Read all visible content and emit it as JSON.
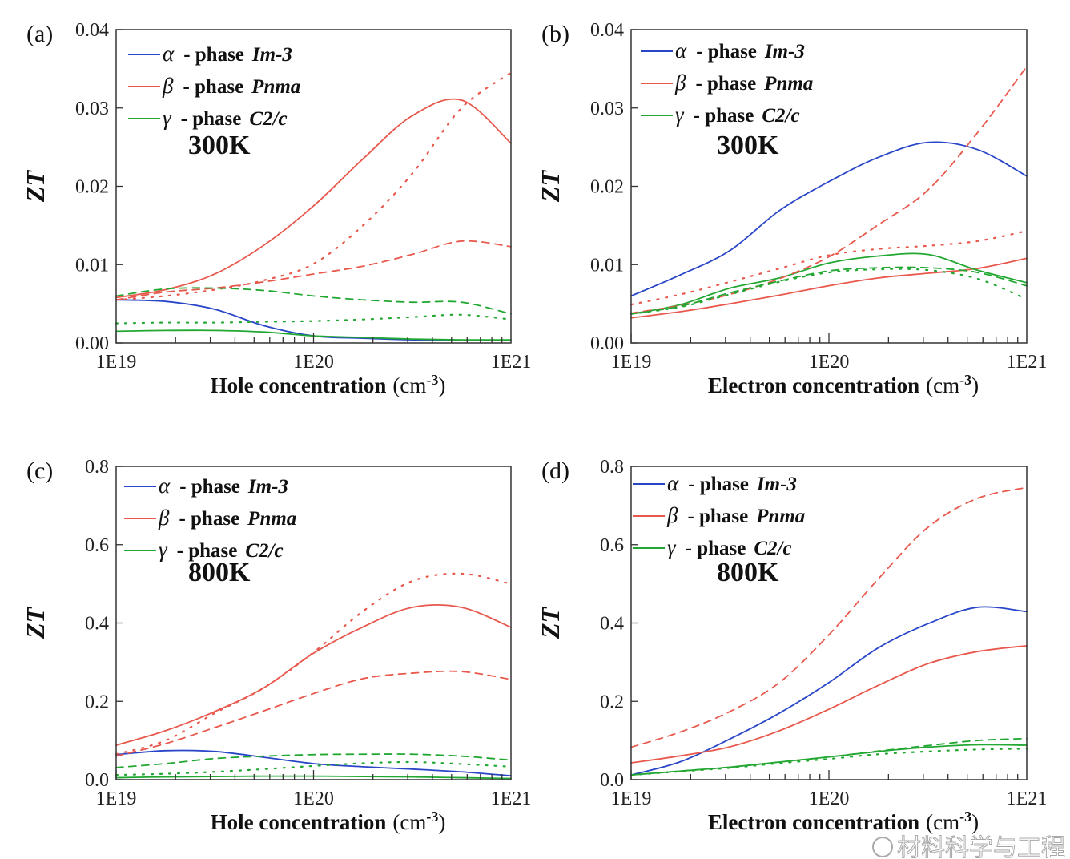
{
  "watermark": "材料科学与工程",
  "colors": {
    "alpha": "#2a46c8",
    "beta": "#e8584c",
    "gamma": "#22a832"
  },
  "chart_data": [
    {
      "type": "line",
      "panel_label": "(a)",
      "annotation": "300K",
      "xlabel": "Hole concentration",
      "xlabel_unit": "(cm",
      "xlabel_exp": "-3",
      "xlabel_close": ")",
      "ylabel": "ZT",
      "xscale": "log",
      "xlim": [
        1e+19,
        1e+21
      ],
      "ylim": [
        0,
        0.04
      ],
      "xticks": [
        "1E19",
        "1E20",
        "1E21"
      ],
      "yticks": [
        "0.00",
        "0.01",
        "0.02",
        "0.03",
        "0.04"
      ],
      "legend_position": "top-left",
      "x": [
        1e+19,
        1.78e+19,
        3.16e+19,
        5.62e+19,
        1e+20,
        1.78e+20,
        3.16e+20,
        5.62e+20,
        1e+21
      ],
      "series": [
        {
          "name": "α - phase Im-3",
          "color": "#2a46c8",
          "style": "solid",
          "values": [
            0.0055,
            0.0053,
            0.0043,
            0.0022,
            0.0009,
            0.0006,
            0.0004,
            0.0003,
            0.0003
          ]
        },
        {
          "name": "β - phase Pnma",
          "color": "#e8584c",
          "style": "solid",
          "values": [
            0.0058,
            0.0068,
            0.0088,
            0.0125,
            0.0175,
            0.0235,
            0.029,
            0.031,
            0.0255
          ]
        },
        {
          "name": "γ - phase C2/c",
          "color": "#22a832",
          "style": "solid",
          "values": [
            0.0015,
            0.0016,
            0.0016,
            0.0014,
            0.0009,
            0.0007,
            0.0005,
            0.0004,
            0.0004
          ]
        },
        {
          "color": "#e8584c",
          "style": "dashed",
          "values": [
            0.0055,
            0.0065,
            0.007,
            0.0078,
            0.0088,
            0.0098,
            0.0113,
            0.013,
            0.0123
          ]
        },
        {
          "color": "#e8584c",
          "style": "dotted",
          "values": [
            0.0055,
            0.006,
            0.0068,
            0.008,
            0.0101,
            0.015,
            0.0216,
            0.03,
            0.0345
          ]
        },
        {
          "color": "#22a832",
          "style": "dashed",
          "values": [
            0.006,
            0.0069,
            0.007,
            0.0067,
            0.006,
            0.0055,
            0.0052,
            0.0052,
            0.0037
          ]
        },
        {
          "color": "#22a832",
          "style": "dotted",
          "values": [
            0.0025,
            0.0026,
            0.0026,
            0.0027,
            0.0028,
            0.003,
            0.0033,
            0.0036,
            0.003
          ]
        }
      ]
    },
    {
      "type": "line",
      "panel_label": "(b)",
      "annotation": "300K",
      "xlabel": "Electron concentration",
      "xlabel_unit": "(cm",
      "xlabel_exp": "-3",
      "xlabel_close": ")",
      "ylabel": "ZT",
      "xscale": "log",
      "xlim": [
        1e+19,
        1e+21
      ],
      "ylim": [
        0,
        0.04
      ],
      "xticks": [
        "1E19",
        "1E20",
        "1E21"
      ],
      "yticks": [
        "0.00",
        "0.01",
        "0.02",
        "0.03",
        "0.04"
      ],
      "legend_position": "top-left",
      "x": [
        1e+19,
        1.78e+19,
        3.16e+19,
        5.62e+19,
        1e+20,
        1.78e+20,
        3.16e+20,
        5.62e+20,
        1e+21
      ],
      "series": [
        {
          "name": "α - phase Im-3",
          "color": "#2a46c8",
          "style": "solid",
          "values": [
            0.006,
            0.0087,
            0.0118,
            0.0169,
            0.0206,
            0.0237,
            0.0256,
            0.0247,
            0.0213
          ]
        },
        {
          "name": "β - phase Pnma",
          "color": "#e8584c",
          "style": "solid",
          "values": [
            0.0032,
            0.004,
            0.005,
            0.0061,
            0.0073,
            0.0083,
            0.0089,
            0.0095,
            0.0108
          ]
        },
        {
          "name": "γ - phase C2/c",
          "color": "#22a832",
          "style": "solid",
          "values": [
            0.0037,
            0.0049,
            0.007,
            0.0083,
            0.0102,
            0.0111,
            0.0113,
            0.0093,
            0.0077
          ]
        },
        {
          "color": "#e8584c",
          "style": "dashed",
          "values": [
            0.0038,
            0.0048,
            0.0062,
            0.0082,
            0.011,
            0.0151,
            0.0195,
            0.0268,
            0.0353
          ]
        },
        {
          "color": "#e8584c",
          "style": "dotted",
          "values": [
            0.0049,
            0.0062,
            0.0078,
            0.0095,
            0.0112,
            0.012,
            0.0124,
            0.013,
            0.0143
          ]
        },
        {
          "color": "#22a832",
          "style": "dashed",
          "values": [
            0.0037,
            0.0047,
            0.0064,
            0.0079,
            0.0092,
            0.0096,
            0.0096,
            0.009,
            0.0073
          ]
        },
        {
          "color": "#22a832",
          "style": "dotted",
          "values": [
            0.0037,
            0.0046,
            0.0062,
            0.0078,
            0.009,
            0.0094,
            0.0093,
            0.0082,
            0.0056
          ]
        }
      ]
    },
    {
      "type": "line",
      "panel_label": "(c)",
      "annotation": "800K",
      "xlabel": "Hole concentration",
      "xlabel_unit": "(cm",
      "xlabel_exp": "-3",
      "xlabel_close": ")",
      "ylabel": "ZT",
      "xscale": "log",
      "xlim": [
        1e+19,
        1e+21
      ],
      "ylim": [
        0,
        0.8
      ],
      "xticks": [
        "1E19",
        "1E20",
        "1E21"
      ],
      "yticks": [
        "0.0",
        "0.2",
        "0.4",
        "0.6",
        "0.8"
      ],
      "legend_position": "top-left",
      "x": [
        1e+19,
        1.78e+19,
        3.16e+19,
        5.62e+19,
        1e+20,
        1.78e+20,
        3.16e+20,
        5.62e+20,
        1e+21
      ],
      "series": [
        {
          "name": "α - phase Im-3",
          "color": "#2a46c8",
          "style": "solid",
          "values": [
            0.064,
            0.074,
            0.072,
            0.057,
            0.041,
            0.033,
            0.027,
            0.02,
            0.01
          ]
        },
        {
          "name": "β - phase Pnma",
          "color": "#e8584c",
          "style": "solid",
          "values": [
            0.088,
            0.125,
            0.174,
            0.235,
            0.323,
            0.39,
            0.44,
            0.44,
            0.389
          ]
        },
        {
          "name": "γ - phase C2/c",
          "color": "#22a832",
          "style": "solid",
          "values": [
            0.005,
            0.007,
            0.008,
            0.009,
            0.009,
            0.008,
            0.007,
            0.005,
            0.003
          ]
        },
        {
          "color": "#e8584c",
          "style": "dashed",
          "values": [
            0.06,
            0.092,
            0.133,
            0.176,
            0.22,
            0.258,
            0.272,
            0.276,
            0.256
          ]
        },
        {
          "color": "#e8584c",
          "style": "dotted",
          "values": [
            0.065,
            0.1,
            0.17,
            0.235,
            0.325,
            0.43,
            0.507,
            0.526,
            0.5
          ]
        },
        {
          "color": "#22a832",
          "style": "dashed",
          "values": [
            0.031,
            0.041,
            0.054,
            0.06,
            0.064,
            0.065,
            0.065,
            0.06,
            0.05
          ]
        },
        {
          "color": "#22a832",
          "style": "dotted",
          "values": [
            0.012,
            0.015,
            0.02,
            0.027,
            0.035,
            0.042,
            0.045,
            0.04,
            0.033
          ]
        }
      ]
    },
    {
      "type": "line",
      "panel_label": "(d)",
      "annotation": "800K",
      "xlabel": "Electron concentration",
      "xlabel_unit": "(cm",
      "xlabel_exp": "-3",
      "xlabel_close": ")",
      "ylabel": "ZT",
      "xscale": "log",
      "xlim": [
        1e+19,
        1e+21
      ],
      "ylim": [
        0,
        0.8
      ],
      "xticks": [
        "1E19",
        "1E20",
        "1E21"
      ],
      "yticks": [
        "0.0",
        "0.2",
        "0.4",
        "0.6",
        "0.8"
      ],
      "legend_position": "top-left",
      "x": [
        1e+19,
        1.78e+19,
        3.16e+19,
        5.62e+19,
        1e+20,
        1.78e+20,
        3.16e+20,
        5.62e+20,
        1e+21
      ],
      "series": [
        {
          "name": "α - phase Im-3",
          "color": "#2a46c8",
          "style": "solid",
          "values": [
            0.012,
            0.046,
            0.104,
            0.17,
            0.248,
            0.337,
            0.398,
            0.44,
            0.429
          ]
        },
        {
          "name": "β - phase Pnma",
          "color": "#e8584c",
          "style": "solid",
          "values": [
            0.043,
            0.061,
            0.084,
            0.125,
            0.18,
            0.241,
            0.296,
            0.327,
            0.342
          ]
        },
        {
          "name": "γ - phase C2/c",
          "color": "#22a832",
          "style": "solid",
          "values": [
            0.012,
            0.022,
            0.032,
            0.045,
            0.058,
            0.072,
            0.083,
            0.089,
            0.088
          ]
        },
        {
          "color": "#e8584c",
          "style": "dashed",
          "values": [
            0.083,
            0.122,
            0.174,
            0.248,
            0.37,
            0.513,
            0.644,
            0.718,
            0.746
          ]
        },
        {
          "color": "#22a832",
          "style": "dashed",
          "values": [
            0.012,
            0.022,
            0.032,
            0.045,
            0.058,
            0.073,
            0.087,
            0.1,
            0.105
          ]
        },
        {
          "color": "#22a832",
          "style": "dotted",
          "values": [
            0.012,
            0.021,
            0.03,
            0.042,
            0.053,
            0.065,
            0.072,
            0.077,
            0.079
          ]
        }
      ]
    }
  ]
}
